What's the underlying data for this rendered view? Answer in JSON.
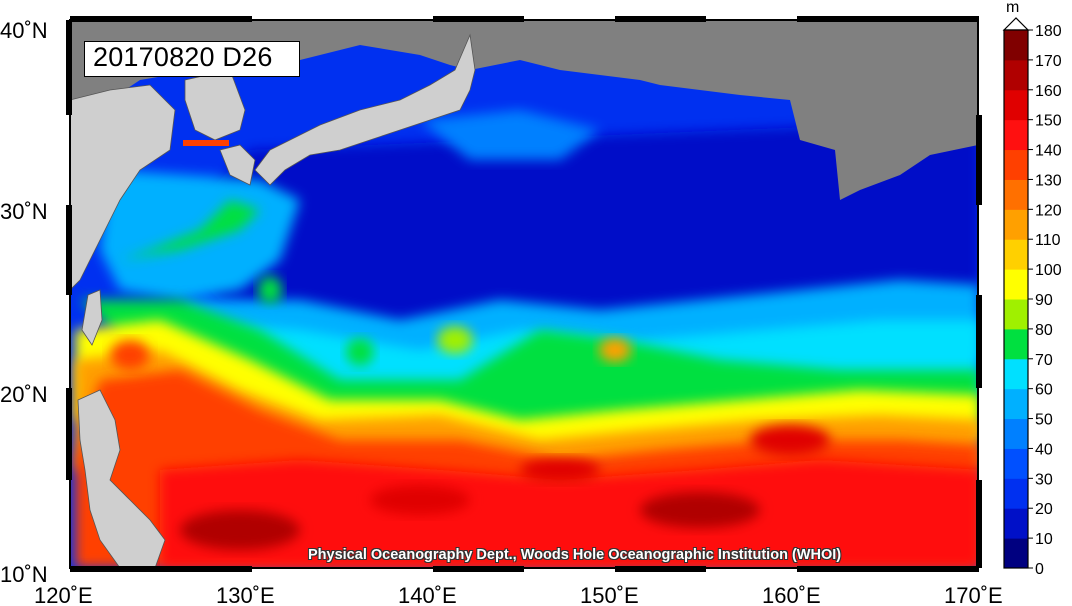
{
  "map": {
    "title": "20170820 D26",
    "credit": "Physical Oceanography Dept., Woods Hole Oceanographic Institution (WHOI)",
    "lon_labels": [
      "120˚E",
      "130˚E",
      "140˚E",
      "150˚E",
      "160˚E",
      "170˚E"
    ],
    "lat_labels": [
      "40˚N",
      "30˚N",
      "20˚N",
      "10˚N"
    ],
    "lon_range": [
      120,
      170
    ],
    "lat_range": [
      10,
      40
    ],
    "land_color": "#808080",
    "landmass_color": "#cfcfcf"
  },
  "colorbar": {
    "unit": "m",
    "ticks": [
      "0",
      "10",
      "20",
      "30",
      "40",
      "50",
      "60",
      "70",
      "80",
      "90",
      "100",
      "110",
      "120",
      "130",
      "140",
      "150",
      "160",
      "170",
      "180"
    ],
    "colors": [
      "#000080",
      "#0010c8",
      "#0030f0",
      "#0050ff",
      "#0080ff",
      "#00b0ff",
      "#00e0ff",
      "#00e040",
      "#a0f000",
      "#ffff00",
      "#ffd000",
      "#ffa000",
      "#ff7000",
      "#ff4000",
      "#ff1010",
      "#e00000",
      "#b00000",
      "#800000"
    ]
  }
}
